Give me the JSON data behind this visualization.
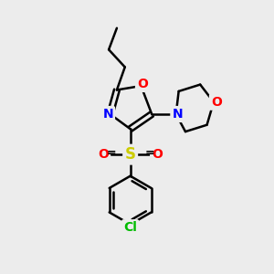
{
  "background_color": "#ececec",
  "bond_color": "#000000",
  "bond_width": 1.8,
  "N_color": "#0000ff",
  "O_color": "#ff0000",
  "S_color": "#cccc00",
  "Cl_color": "#00bb00",
  "font_size_atoms": 10,
  "fig_width": 3.0,
  "fig_height": 3.0,
  "xlim": [
    0,
    10
  ],
  "ylim": [
    0,
    10
  ]
}
